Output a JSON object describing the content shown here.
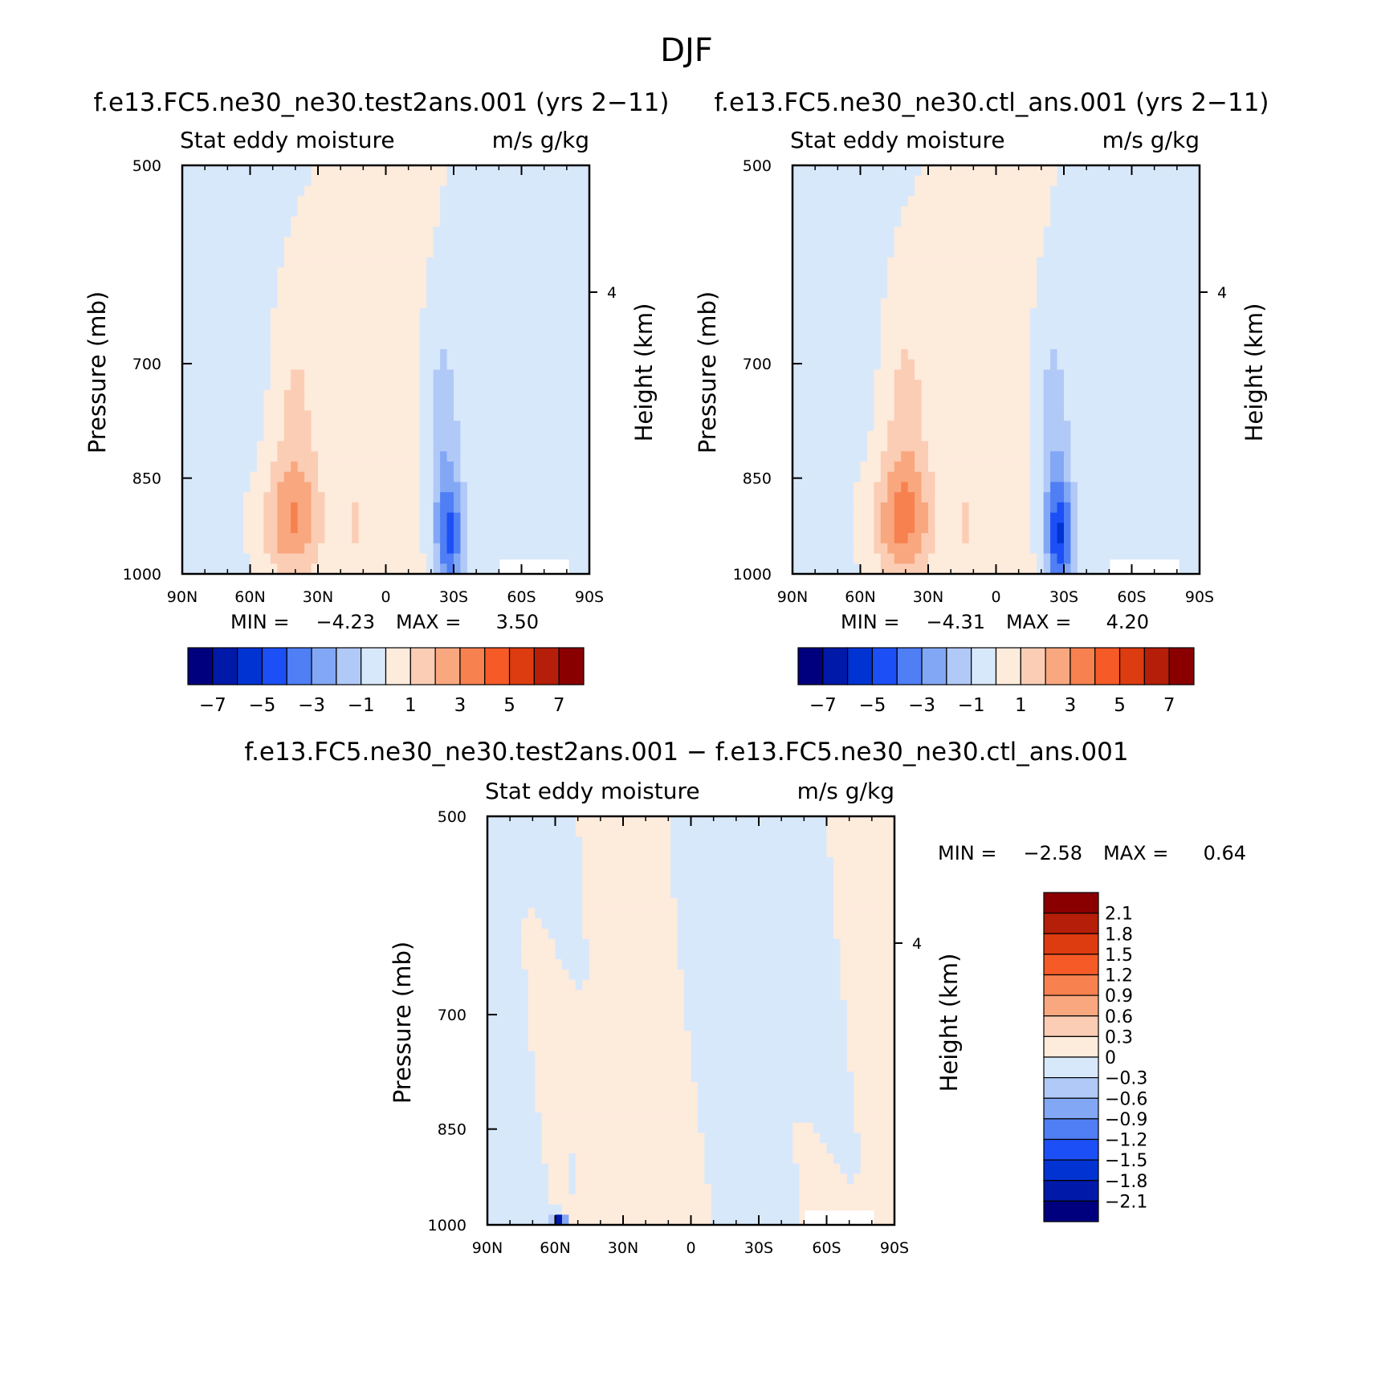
{
  "figure_title": "DJF",
  "colors": {
    "main_scale": [
      "#00007f",
      "#0019a8",
      "#0033d2",
      "#1c4ff5",
      "#4f7ef5",
      "#82a7f4",
      "#b0c9f7",
      "#d8e8fb",
      "#fdebdc",
      "#fbcdb4",
      "#f9a77f",
      "#f7814f",
      "#f55a27",
      "#dd3b10",
      "#b51e08",
      "#8a0000"
    ],
    "diff_scale": [
      "#00007f",
      "#0019a8",
      "#0033d2",
      "#1c4ff5",
      "#4f7ef5",
      "#82a7f4",
      "#b0c9f7",
      "#d8e8fb",
      "#fdebdc",
      "#fbcdb4",
      "#f9a77f",
      "#f7814f",
      "#f55a27",
      "#dd3b10",
      "#b51e08",
      "#8a0000"
    ]
  },
  "chart_data": [
    {
      "id": "panel-test",
      "type": "contour",
      "case_title": "f.e13.FC5.ne30_ne30.test2ans.001 (yrs 2−11)",
      "left_label": "Stat eddy moisture",
      "right_label": "m/s g/kg",
      "ylabel": "Pressure (mb)",
      "ylabel_right": "Height (km)",
      "x_ticks": [
        "90N",
        "60N",
        "30N",
        "0",
        "30S",
        "60S",
        "90S"
      ],
      "y_ticks": [
        "500",
        "700",
        "850",
        "1000"
      ],
      "y_ticks_values": [
        500,
        700,
        850,
        1000
      ],
      "ylim": [
        1000,
        500
      ],
      "right_ticks": [
        "4"
      ],
      "right_ticks_pressure": [
        620
      ],
      "xlim": [
        90,
        -90
      ],
      "min_label": "MIN =",
      "min_value": "−4.23",
      "max_label": "MAX =",
      "max_value": "3.50",
      "colorbar_labels": [
        "−7",
        "−5",
        "−3",
        "−1",
        "1",
        "3",
        "5",
        "7"
      ],
      "colorbar_levels": [
        -7,
        -6,
        -5,
        -4,
        -3,
        -2,
        -1,
        0,
        1,
        2,
        3,
        4,
        5,
        6,
        7
      ],
      "field": "main",
      "min": -4.23,
      "max": 3.5
    },
    {
      "id": "panel-ctl",
      "type": "contour",
      "case_title": "f.e13.FC5.ne30_ne30.ctl_ans.001 (yrs 2−11)",
      "left_label": "Stat eddy moisture",
      "right_label": "m/s g/kg",
      "ylabel": "Pressure (mb)",
      "ylabel_right": "Height (km)",
      "x_ticks": [
        "90N",
        "60N",
        "30N",
        "0",
        "30S",
        "60S",
        "90S"
      ],
      "y_ticks": [
        "500",
        "700",
        "850",
        "1000"
      ],
      "y_ticks_values": [
        500,
        700,
        850,
        1000
      ],
      "ylim": [
        1000,
        500
      ],
      "right_ticks": [
        "4"
      ],
      "right_ticks_pressure": [
        620
      ],
      "xlim": [
        90,
        -90
      ],
      "min_label": "MIN =",
      "min_value": "−4.31",
      "max_label": "MAX =",
      "max_value": "4.20",
      "colorbar_labels": [
        "−7",
        "−5",
        "−3",
        "−1",
        "1",
        "3",
        "5",
        "7"
      ],
      "colorbar_levels": [
        -7,
        -6,
        -5,
        -4,
        -3,
        -2,
        -1,
        0,
        1,
        2,
        3,
        4,
        5,
        6,
        7
      ],
      "field": "main",
      "min": -4.31,
      "max": 4.2
    },
    {
      "id": "panel-diff",
      "type": "contour",
      "case_title": "f.e13.FC5.ne30_ne30.test2ans.001 − f.e13.FC5.ne30_ne30.ctl_ans.001",
      "left_label": "Stat eddy moisture",
      "right_label": "m/s g/kg",
      "ylabel": "Pressure (mb)",
      "ylabel_right": "Height (km)",
      "x_ticks": [
        "90N",
        "60N",
        "30N",
        "0",
        "30S",
        "60S",
        "90S"
      ],
      "y_ticks": [
        "500",
        "700",
        "850",
        "1000"
      ],
      "y_ticks_values": [
        500,
        700,
        850,
        1000
      ],
      "ylim": [
        1000,
        500
      ],
      "right_ticks": [
        "4"
      ],
      "right_ticks_pressure": [
        620
      ],
      "xlim": [
        90,
        -90
      ],
      "min_label": "MIN =",
      "min_value": "−2.58",
      "max_label": "MAX =",
      "max_value": "0.64",
      "colorbar_labels": [
        "2.1",
        "1.8",
        "1.5",
        "1.2",
        "0.9",
        "0.6",
        "0.3",
        "0",
        "−0.3",
        "−0.6",
        "−0.9",
        "−1.2",
        "−1.5",
        "−1.8",
        "−2.1"
      ],
      "colorbar_levels": [
        2.1,
        1.8,
        1.5,
        1.2,
        0.9,
        0.6,
        0.3,
        0,
        -0.3,
        -0.6,
        -0.9,
        -1.2,
        -1.5,
        -1.8,
        -2.1
      ],
      "field": "diff",
      "min": -2.58,
      "max": 0.64
    }
  ]
}
